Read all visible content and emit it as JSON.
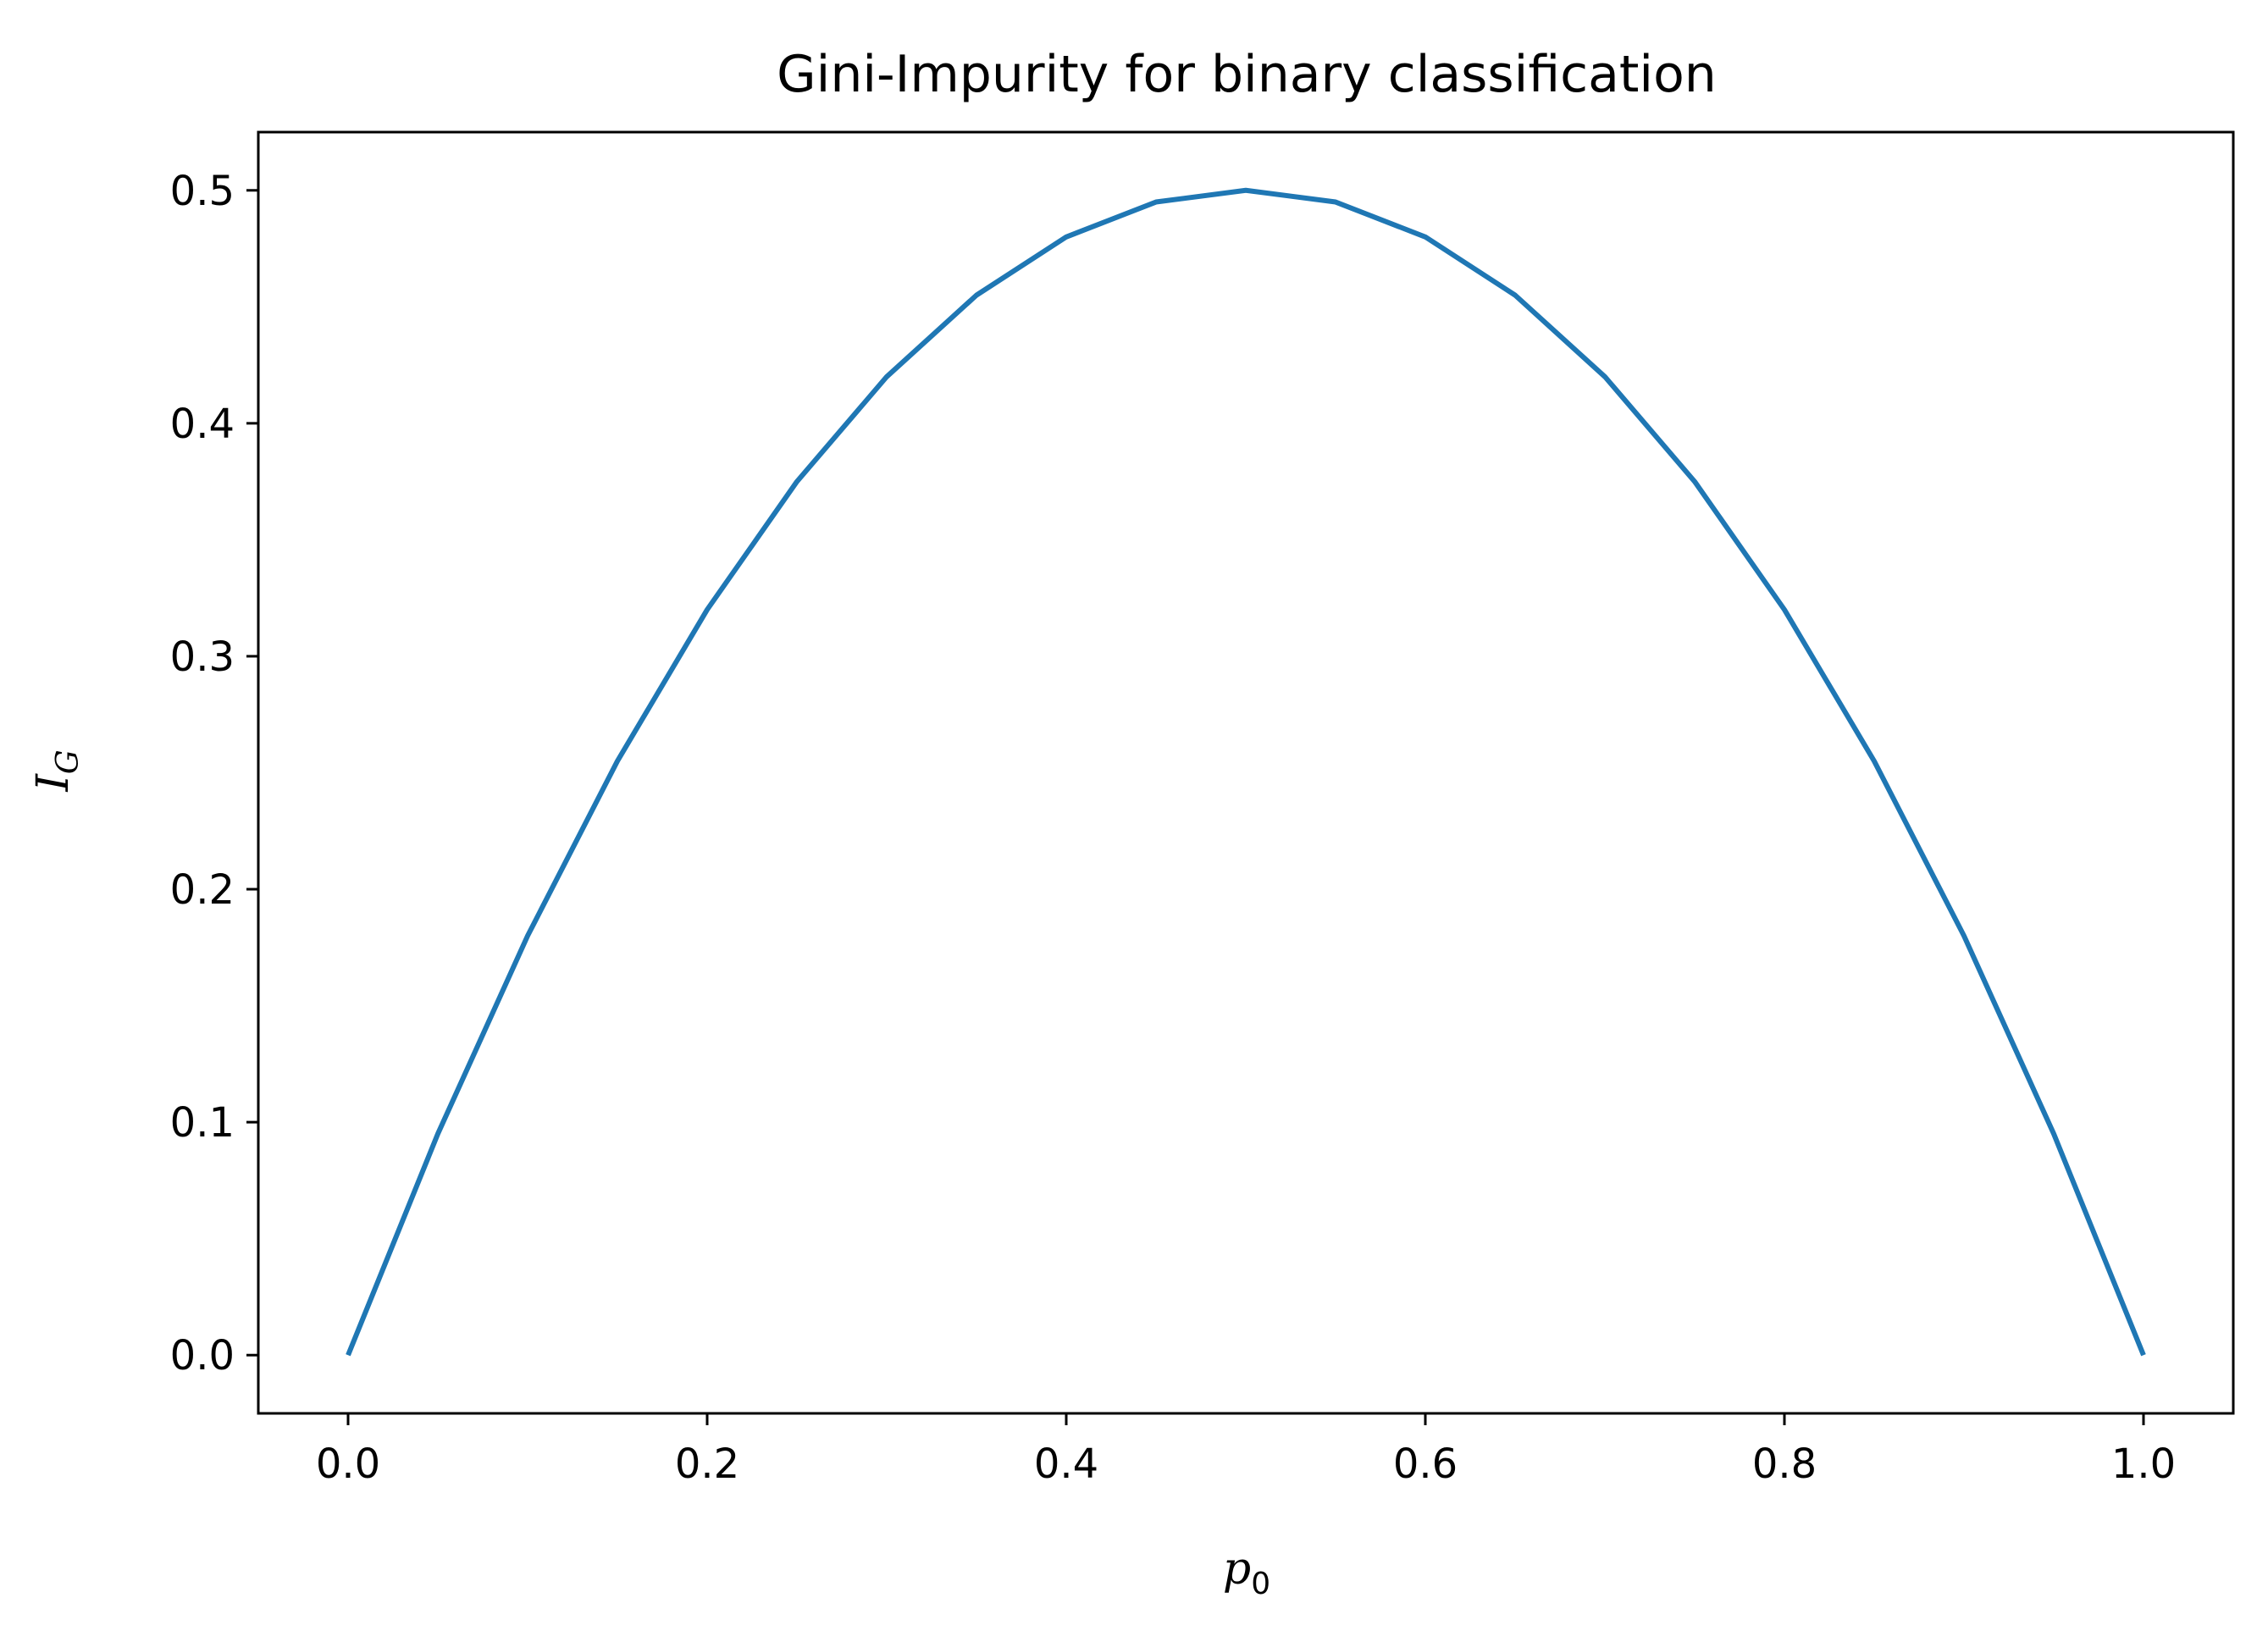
{
  "chart_data": {
    "type": "line",
    "title": "Gini-Impurity for binary classification",
    "xlabel": {
      "main": "p",
      "sub": "0"
    },
    "ylabel": {
      "main": "I",
      "sub": "G"
    },
    "xlim": [
      -0.05,
      1.05
    ],
    "ylim": [
      -0.025,
      0.525
    ],
    "xticks": [
      0.0,
      0.2,
      0.4,
      0.6,
      0.8,
      1.0
    ],
    "xtick_labels": [
      "0.0",
      "0.2",
      "0.4",
      "0.6",
      "0.8",
      "1.0"
    ],
    "yticks": [
      0.0,
      0.1,
      0.2,
      0.3,
      0.4,
      0.5
    ],
    "ytick_labels": [
      "0.0",
      "0.1",
      "0.2",
      "0.3",
      "0.4",
      "0.5"
    ],
    "grid": false,
    "legend": "none",
    "series": [
      {
        "color": "#1f77b4",
        "x": [
          0.0,
          0.05,
          0.1,
          0.15,
          0.2,
          0.25,
          0.3,
          0.35,
          0.4,
          0.45,
          0.5,
          0.55,
          0.6,
          0.65,
          0.7,
          0.75,
          0.8,
          0.85,
          0.9,
          0.95,
          1.0
        ],
        "y": [
          0.0,
          0.095,
          0.18,
          0.255,
          0.32,
          0.375,
          0.42,
          0.455,
          0.48,
          0.495,
          0.5,
          0.495,
          0.48,
          0.455,
          0.42,
          0.375,
          0.32,
          0.255,
          0.18,
          0.095,
          0.0
        ]
      }
    ]
  }
}
